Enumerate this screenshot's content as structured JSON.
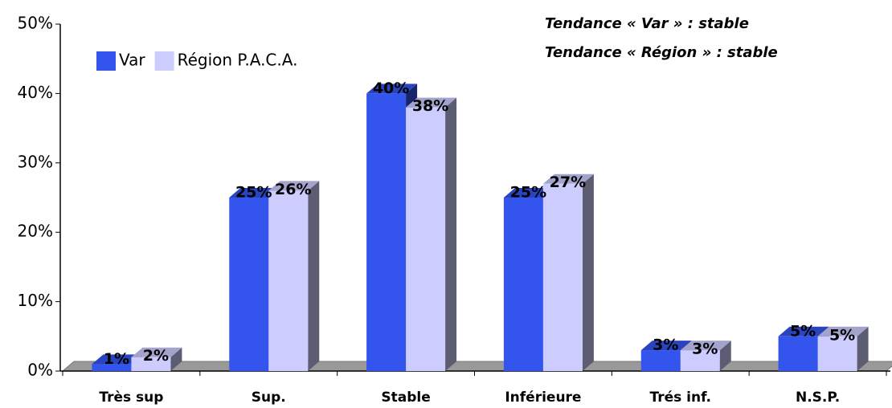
{
  "chart_data": {
    "type": "bar3d",
    "annotations": [
      "Tendance « Var » : stable",
      "Tendance « Région » : stable"
    ],
    "categories": [
      "Très sup",
      "Sup.",
      "Stable",
      "Inférieure",
      "Trés inf.",
      "N.S.P."
    ],
    "series": [
      {
        "name": "Var",
        "color": "#3355ee",
        "values": [
          1,
          25,
          40,
          25,
          3,
          5
        ],
        "value_labels": [
          "1%",
          "25%",
          "40%",
          "25%",
          "3%",
          "5%"
        ]
      },
      {
        "name": "Région P.A.C.A.",
        "color": "#ccccff",
        "values": [
          2,
          26,
          38,
          27,
          3,
          5
        ],
        "value_labels": [
          "2%",
          "26%",
          "38%",
          "27%",
          "3%",
          "5%"
        ]
      }
    ],
    "ylim": [
      0,
      50
    ],
    "yticks": [
      {
        "value": 0,
        "label": "0%"
      },
      {
        "value": 10,
        "label": "10%"
      },
      {
        "value": 20,
        "label": "20%"
      },
      {
        "value": 30,
        "label": "30%"
      },
      {
        "value": 40,
        "label": "40%"
      },
      {
        "value": 50,
        "label": "50%"
      }
    ],
    "legend": "top-left"
  }
}
